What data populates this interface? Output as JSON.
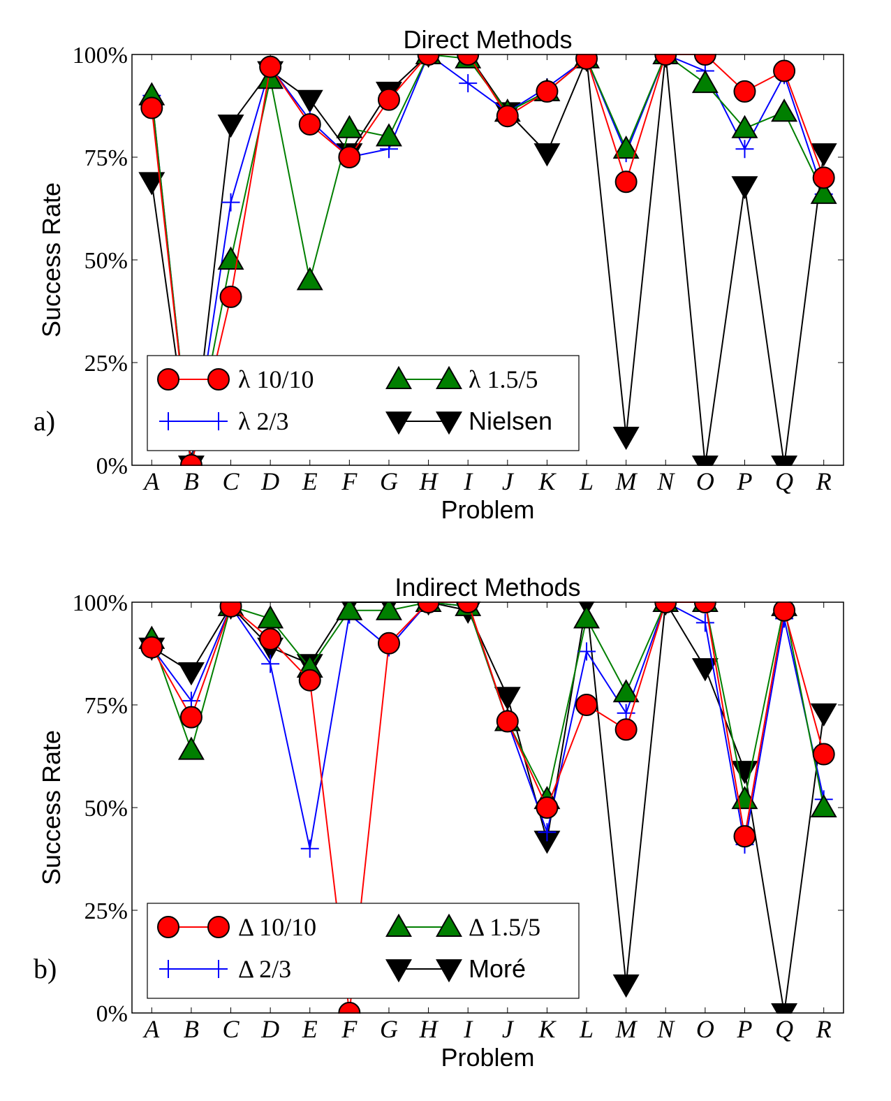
{
  "chart_data": [
    {
      "type": "line",
      "title": "Direct Methods",
      "panel_label": "a)",
      "xlabel": "Problem",
      "ylabel": "Success Rate",
      "categories": [
        "A",
        "B",
        "C",
        "D",
        "E",
        "F",
        "G",
        "H",
        "I",
        "J",
        "K",
        "L",
        "M",
        "N",
        "O",
        "P",
        "Q",
        "R"
      ],
      "ylim": [
        0,
        100
      ],
      "yticks": [
        0,
        25,
        50,
        75,
        100
      ],
      "ytick_labels": [
        "0%",
        "25%",
        "50%",
        "75%",
        "100%"
      ],
      "legend_position": "lower-left",
      "series": [
        {
          "name": "λ 10/10",
          "color": "#ff0000",
          "marker": "circle",
          "values": [
            87,
            0,
            41,
            97,
            83,
            75,
            89,
            100,
            100,
            85,
            91,
            99,
            69,
            100,
            100,
            91,
            96,
            70
          ]
        },
        {
          "name": "λ 2/3",
          "color": "#0000ff",
          "marker": "plus",
          "values": [
            90,
            0,
            64,
            97,
            84,
            75,
            77,
            100,
            93,
            86,
            92,
            99,
            76,
            100,
            96,
            77,
            95,
            66
          ]
        },
        {
          "name": "λ 1.5/5",
          "color": "#007f00",
          "marker": "triangle-up",
          "values": [
            90,
            0,
            50,
            94,
            45,
            82,
            80,
            100,
            99,
            86,
            91,
            99,
            77,
            100,
            93,
            82,
            86,
            66
          ]
        },
        {
          "name": "Nielsen",
          "color": "#000000",
          "marker": "triangle-down",
          "values": [
            69,
            0,
            83,
            96,
            89,
            76,
            91,
            100,
            100,
            86,
            76,
            99,
            7,
            100,
            0,
            68,
            0,
            76
          ]
        }
      ]
    },
    {
      "type": "line",
      "title": "Indirect Methods",
      "panel_label": "b)",
      "xlabel": "Problem",
      "ylabel": "Success Rate",
      "categories": [
        "A",
        "B",
        "C",
        "D",
        "E",
        "F",
        "G",
        "H",
        "I",
        "J",
        "K",
        "L",
        "M",
        "N",
        "O",
        "P",
        "Q",
        "R"
      ],
      "ylim": [
        0,
        100
      ],
      "yticks": [
        0,
        25,
        50,
        75,
        100
      ],
      "ytick_labels": [
        "0%",
        "25%",
        "50%",
        "75%",
        "100%"
      ],
      "legend_position": "lower-left",
      "series": [
        {
          "name": "Δ 10/10",
          "color": "#ff0000",
          "marker": "circle",
          "values": [
            89,
            72,
            99,
            91,
            81,
            0,
            90,
            100,
            100,
            71,
            50,
            75,
            69,
            100,
            100,
            43,
            98,
            63
          ]
        },
        {
          "name": "Δ 2/3",
          "color": "#0000ff",
          "marker": "plus",
          "values": [
            89,
            76,
            99,
            85,
            40,
            97,
            89,
            100,
            99,
            71,
            44,
            88,
            73,
            100,
            95,
            41,
            96,
            52
          ]
        },
        {
          "name": "Δ 1.5/5",
          "color": "#007f00",
          "marker": "triangle-up",
          "values": [
            91,
            64,
            99,
            96,
            84,
            98,
            98,
            100,
            99,
            71,
            52,
            96,
            78,
            100,
            100,
            52,
            99,
            50
          ]
        },
        {
          "name": "Moré",
          "color": "#000000",
          "marker": "triangle-down",
          "values": [
            89,
            83,
            99,
            89,
            85,
            100,
            100,
            100,
            98,
            77,
            42,
            100,
            7,
            100,
            84,
            59,
            0,
            73
          ]
        }
      ]
    }
  ]
}
